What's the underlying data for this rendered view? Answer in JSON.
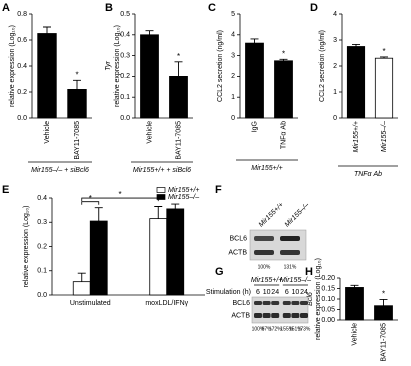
{
  "chart_data": [
    {
      "type": "bar",
      "label": "A",
      "ylabel": "relative expression (Log₁₀)",
      "categories": [
        "Vehicle",
        "BAY11-7085"
      ],
      "values": [
        0.65,
        0.22
      ],
      "errors": [
        0.05,
        0.07
      ],
      "colors": [
        "#000000",
        "#000000"
      ],
      "ylim": [
        0,
        0.8
      ],
      "yticks": [
        {
          "value": 0,
          "label": "0.0"
        },
        {
          "value": 0.2,
          "label": "0.2"
        },
        {
          "value": 0.4,
          "label": "0.4"
        },
        {
          "value": 0.6,
          "label": "0.6"
        },
        {
          "value": 0.8,
          "label": "0.8"
        }
      ],
      "annotation": "*",
      "footer": "Mir155–/– + siBcl6"
    },
    {
      "type": "bar",
      "label": "B",
      "ylabel_gene": "Tyr",
      "ylabel": "relative expression (Log₁₀)",
      "categories": [
        "Vehicle",
        "BAY11-7085"
      ],
      "values": [
        0.4,
        0.2
      ],
      "errors": [
        0.02,
        0.07
      ],
      "colors": [
        "#000000",
        "#000000"
      ],
      "ylim": [
        0,
        0.5
      ],
      "yticks": [
        {
          "value": 0,
          "label": "0.0"
        },
        0.1,
        0.2,
        0.3,
        0.4,
        0.5
      ],
      "annotation": "*",
      "footer": "Mir155+/+ + siBcl6"
    },
    {
      "type": "bar",
      "label": "C",
      "ylabel": "CCL2 secretion (ng/ml)",
      "categories": [
        "IgG",
        "TNFα Ab"
      ],
      "values": [
        3.6,
        2.75
      ],
      "errors": [
        0.2,
        0.07
      ],
      "colors": [
        "#000000",
        "#000000"
      ],
      "ylim": [
        0,
        5
      ],
      "yticks": [
        0,
        1,
        2,
        3,
        4,
        5
      ],
      "annotation": "*",
      "footer": "Mir155+/+"
    },
    {
      "type": "bar",
      "label": "D",
      "ylabel": "CCL2 secretion (ng/ml)",
      "categories": [
        "Mir155+/+",
        "Mir155–/–"
      ],
      "values": [
        2.75,
        2.3
      ],
      "errors": [
        0.08,
        0.05
      ],
      "colors": [
        "#000000",
        "#ffffff"
      ],
      "ylim": [
        0,
        4
      ],
      "yticks": [
        0,
        1,
        2,
        3,
        4
      ],
      "annotation": "*",
      "footer": "TNFα Ab"
    },
    {
      "type": "bar",
      "label": "E",
      "ylabel": "relative expression (Log₁₀)",
      "categories": [
        "Unstimulated",
        "moxLDL/IFNγ"
      ],
      "series": [
        {
          "name": "Mir155+/+",
          "color": "#ffffff",
          "values": [
            0.055,
            0.315
          ],
          "errors": [
            0.035,
            0.05
          ]
        },
        {
          "name": "Mir155–/–",
          "color": "#000000",
          "values": [
            0.305,
            0.355
          ],
          "errors": [
            0.055,
            0.02
          ]
        }
      ],
      "ylim": [
        0,
        0.4
      ],
      "yticks": [
        {
          "value": 0,
          "label": "0.0"
        },
        0.1,
        0.2,
        0.3,
        0.4
      ],
      "annotations": [
        "*",
        "*"
      ]
    },
    {
      "type": "bar",
      "label": "H",
      "ylabel_gene": "Bcl6",
      "ylabel": "relative expression (Log₁₀)",
      "categories": [
        "Vehicle",
        "BAY11-7085"
      ],
      "values": [
        0.155,
        0.068
      ],
      "errors": [
        0.01,
        0.03
      ],
      "colors": [
        "#000000",
        "#000000"
      ],
      "ylim": [
        0,
        0.2
      ],
      "yticks": [
        {
          "value": 0,
          "label": "0.00"
        },
        {
          "value": 0.05,
          "label": "0.05"
        },
        {
          "value": 0.1,
          "label": "0.10"
        },
        {
          "value": 0.15,
          "label": "0.15"
        },
        {
          "value": 0.2,
          "label": "0.20"
        }
      ],
      "annotation": "*"
    }
  ],
  "blot_f": {
    "label": "F",
    "lanes": [
      "Mir155+/+",
      "Mir155–/–"
    ],
    "rows": [
      "BCL6",
      "ACTB"
    ],
    "percents": [
      "100%",
      "131%"
    ]
  },
  "blot_g": {
    "label": "G",
    "axis_label": "Stimulation (h)",
    "groups": [
      "Mir155+/+",
      "Mir155–/–"
    ],
    "times": [
      "6",
      "10",
      "24",
      "6",
      "10",
      "24"
    ],
    "rows": [
      "BCL6",
      "ACTB"
    ],
    "percents": [
      "100%",
      "97%",
      "172%",
      "155%",
      "151%",
      "173%"
    ]
  }
}
